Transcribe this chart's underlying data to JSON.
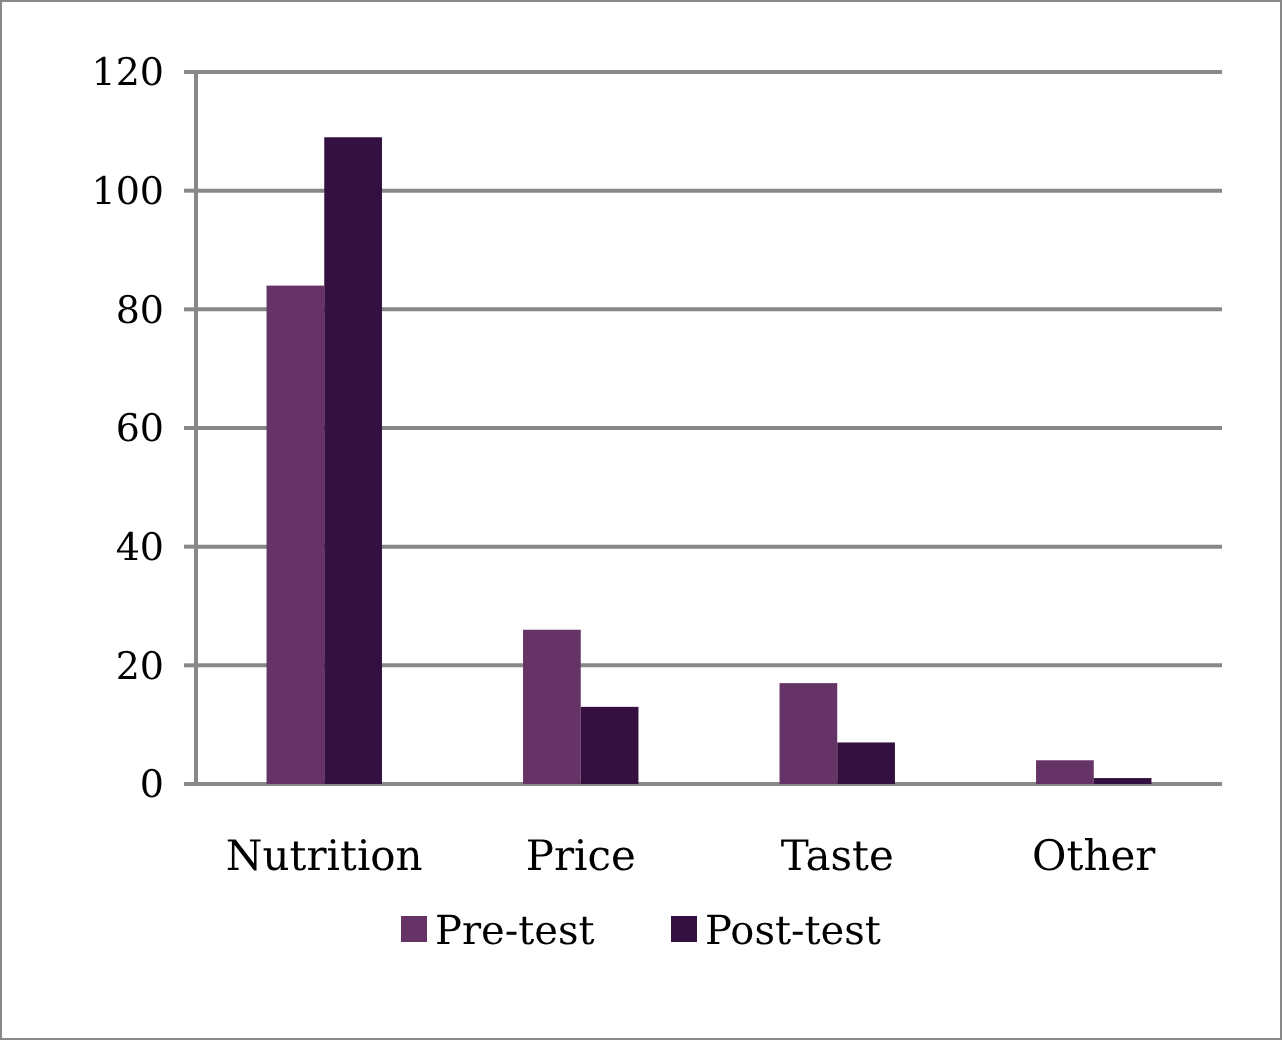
{
  "chart_data": {
    "type": "bar",
    "categories": [
      "Nutrition",
      "Price",
      "Taste",
      "Other"
    ],
    "series": [
      {
        "name": "Pre-test",
        "color": "#663366",
        "values": [
          84,
          26,
          17,
          4
        ]
      },
      {
        "name": "Post-test",
        "color": "#33103f",
        "values": [
          109,
          13,
          7,
          1
        ]
      }
    ],
    "ylim": [
      0,
      120
    ],
    "yticks": [
      0,
      20,
      40,
      60,
      80,
      100,
      120
    ],
    "grid": "y",
    "legend": "bottom"
  }
}
